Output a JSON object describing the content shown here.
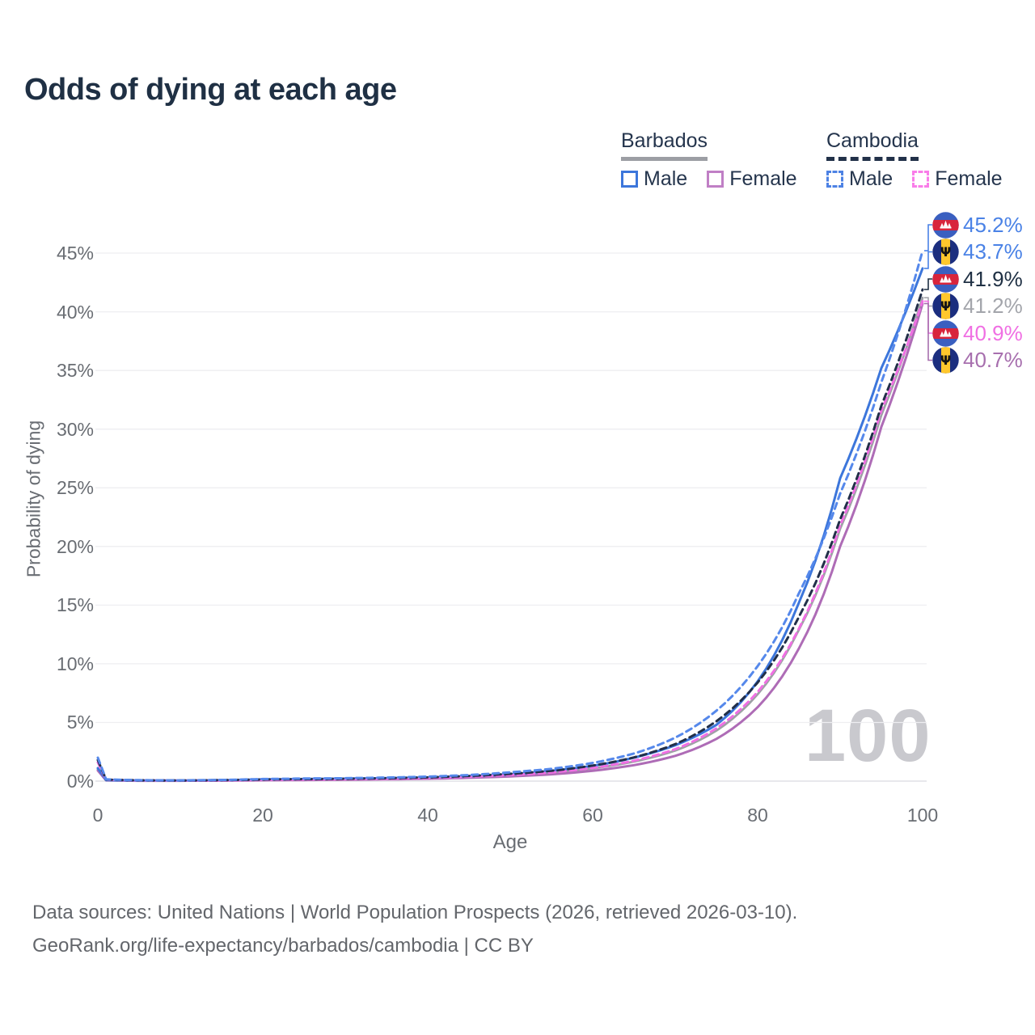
{
  "title": "Odds of dying at each age",
  "watermark": "100",
  "legend": {
    "groups": [
      {
        "country": "Barbados",
        "line_style": "solid",
        "underline_color": "#9c9ea4",
        "items": [
          {
            "label": "Male",
            "color": "#3c76db"
          },
          {
            "label": "Female",
            "color": "#c07fc5"
          }
        ]
      },
      {
        "country": "Cambodia",
        "line_style": "dashed",
        "underline_color": "#223149",
        "items": [
          {
            "label": "Male",
            "color": "#4d82e4"
          },
          {
            "label": "Female",
            "color": "#f97de9"
          }
        ]
      }
    ]
  },
  "footer": {
    "line1": "Data sources: United Nations | World Population Prospects (2026, retrieved 2026-03-10).",
    "line2": "GeoRank.org/life-expectancy/barbados/cambodia | CC BY"
  },
  "chart_data": {
    "type": "line",
    "title": "Odds of dying at each age",
    "xlabel": "Age",
    "ylabel": "Probability of dying",
    "xlim": [
      0,
      100
    ],
    "ylim_pct": [
      0,
      47
    ],
    "xticks": [
      0,
      20,
      40,
      60,
      80,
      100
    ],
    "yticks": [
      "0%",
      "5%",
      "10%",
      "15%",
      "20%",
      "25%",
      "30%",
      "35%",
      "40%",
      "45%"
    ],
    "grid": "horizontal",
    "x": [
      0,
      1,
      5,
      10,
      15,
      20,
      25,
      30,
      35,
      40,
      45,
      50,
      55,
      60,
      65,
      70,
      75,
      80,
      85,
      90,
      95,
      100
    ],
    "series": [
      {
        "key": "barbados_total",
        "name": "Barbados Total",
        "country": "Barbados",
        "sex": "total",
        "line": "solid",
        "color": "#9ea0a6",
        "width": 2.8,
        "values_pct": [
          1.0,
          0.07,
          0.04,
          0.04,
          0.06,
          0.11,
          0.14,
          0.16,
          0.2,
          0.26,
          0.35,
          0.48,
          0.72,
          1.08,
          1.66,
          2.6,
          4.3,
          7.4,
          12.9,
          21.5,
          31.2,
          41.2
        ]
      },
      {
        "key": "barbados_female",
        "name": "Barbados Female",
        "country": "Barbados",
        "sex": "female",
        "line": "solid",
        "color": "#ae6cb6",
        "width": 3,
        "values_pct": [
          0.9,
          0.06,
          0.03,
          0.03,
          0.04,
          0.07,
          0.09,
          0.12,
          0.15,
          0.2,
          0.28,
          0.4,
          0.58,
          0.88,
          1.36,
          2.15,
          3.6,
          6.3,
          11.3,
          20.0,
          30.2,
          40.7
        ]
      },
      {
        "key": "barbados_male",
        "name": "Barbados Male",
        "country": "Barbados",
        "sex": "male",
        "line": "solid",
        "color": "#3c76db",
        "width": 3,
        "values_pct": [
          1.1,
          0.08,
          0.05,
          0.05,
          0.08,
          0.15,
          0.18,
          0.21,
          0.25,
          0.31,
          0.42,
          0.58,
          0.88,
          1.3,
          2.0,
          3.05,
          4.8,
          8.5,
          15.2,
          25.8,
          35.2,
          43.7
        ]
      },
      {
        "key": "cambodia_female",
        "name": "Cambodia Female",
        "country": "Cambodia",
        "sex": "female",
        "line": "dashed",
        "color": "#f06fe3",
        "width": 3,
        "values_pct": [
          1.6,
          0.12,
          0.06,
          0.04,
          0.06,
          0.1,
          0.13,
          0.16,
          0.2,
          0.27,
          0.37,
          0.52,
          0.74,
          1.12,
          1.74,
          2.72,
          4.5,
          7.6,
          13.0,
          21.8,
          31.6,
          40.9
        ]
      },
      {
        "key": "cambodia_total",
        "name": "Cambodia Total",
        "country": "Cambodia",
        "sex": "total",
        "line": "dashed",
        "color": "#222f49",
        "width": 3,
        "values_pct": [
          1.8,
          0.13,
          0.07,
          0.05,
          0.08,
          0.14,
          0.17,
          0.2,
          0.25,
          0.32,
          0.44,
          0.62,
          0.88,
          1.32,
          2.02,
          3.15,
          5.1,
          8.4,
          14.0,
          22.3,
          32.0,
          41.9
        ]
      },
      {
        "key": "cambodia_male",
        "name": "Cambodia Male",
        "country": "Cambodia",
        "sex": "male",
        "line": "dashed",
        "color": "#5588eb",
        "width": 3,
        "values_pct": [
          2.0,
          0.15,
          0.08,
          0.06,
          0.1,
          0.18,
          0.22,
          0.25,
          0.3,
          0.38,
          0.52,
          0.75,
          1.05,
          1.55,
          2.35,
          3.7,
          6.0,
          9.8,
          16.0,
          24.5,
          34.0,
          45.2
        ]
      }
    ],
    "end_labels": [
      {
        "text": "45.2%",
        "flag": "cambodia",
        "series": "cambodia_male",
        "color": "#4a82e6"
      },
      {
        "text": "43.7%",
        "flag": "barbados",
        "series": "barbados_male",
        "color": "#4a82e6"
      },
      {
        "text": "41.9%",
        "flag": "cambodia",
        "series": "cambodia_total",
        "color": "#1f3044"
      },
      {
        "text": "41.2%",
        "flag": "barbados",
        "series": "barbados_total",
        "color": "#a3a5ab"
      },
      {
        "text": "40.9%",
        "flag": "cambodia",
        "series": "cambodia_female",
        "color": "#f06fe3"
      },
      {
        "text": "40.7%",
        "flag": "barbados",
        "series": "barbados_female",
        "color": "#a76fae"
      }
    ],
    "legend_position": "top-right",
    "flag_colors": {
      "cambodia": {
        "blue": "#3a5fc0",
        "red": "#d8243c",
        "temple": "#ffffff"
      },
      "barbados": {
        "blue": "#1b2e7f",
        "gold": "#ffc72c",
        "trident": "#151515"
      }
    }
  }
}
